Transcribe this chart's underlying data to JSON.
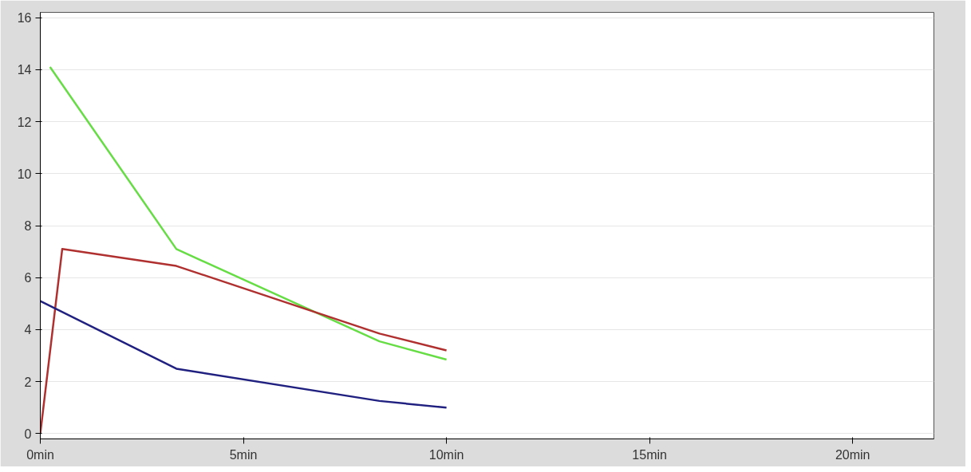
{
  "chart_data": {
    "type": "line",
    "xlim": [
      0,
      22
    ],
    "ylim": [
      -0.2,
      16.2
    ],
    "xticks": [
      {
        "value": 0,
        "label": "0min"
      },
      {
        "value": 5,
        "label": "5min"
      },
      {
        "value": 10,
        "label": "10min"
      },
      {
        "value": 15,
        "label": "15min"
      },
      {
        "value": 20,
        "label": "20min"
      }
    ],
    "yticks": [
      0,
      2,
      4,
      6,
      8,
      10,
      12,
      14,
      16
    ],
    "grid": "y",
    "marker": "none",
    "line_style": "solid",
    "series": [
      {
        "color": "#66dd44",
        "x": [
          0.24,
          3.35,
          8.35,
          10
        ],
        "values": [
          14.1,
          7.1,
          3.55,
          2.85
        ]
      },
      {
        "color": "#b03030",
        "x": [
          0,
          0.54,
          3.35,
          8.35,
          10
        ],
        "values": [
          0,
          7.1,
          6.45,
          3.85,
          3.2
        ]
      },
      {
        "color": "#202080",
        "x": [
          0,
          3.35,
          8.35,
          10
        ],
        "values": [
          5.1,
          2.5,
          1.26,
          1.0
        ]
      }
    ]
  }
}
